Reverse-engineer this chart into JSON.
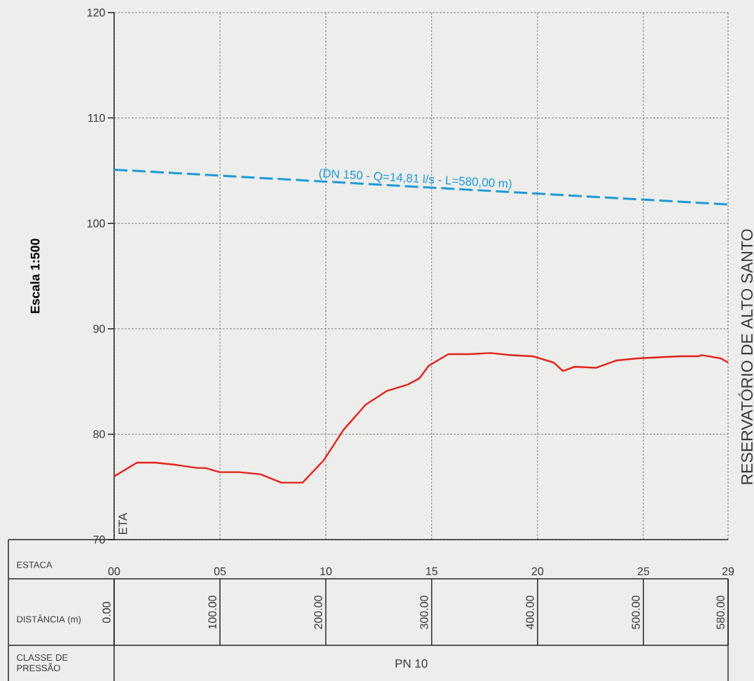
{
  "chart_data": {
    "type": "line",
    "ylabel": "Escala 1:500",
    "xlim": [
      0,
      29
    ],
    "ylim": [
      70,
      120
    ],
    "xticks": [
      {
        "value": 0,
        "label": "00"
      },
      {
        "value": 5,
        "label": "05"
      },
      10,
      15,
      20,
      25,
      29
    ],
    "yticks": [
      70,
      80,
      90,
      100,
      110,
      120
    ],
    "grid": true,
    "marker": "none",
    "series": [
      {
        "color": "#e2231a",
        "line_style": "solid",
        "x": [
          0,
          1.08,
          1.94,
          2.88,
          3.93,
          4.31,
          4.98,
          5.92,
          6.91,
          7.9,
          8.9,
          9.89,
          10.83,
          11.88,
          12.87,
          13.86,
          14.42,
          14.86,
          15.79,
          16.79,
          17.78,
          18.77,
          19.77,
          20.76,
          21.2,
          21.75,
          22.75,
          23.74,
          24.74,
          25.73,
          26.72,
          27.63,
          27.74,
          28.65,
          29
        ],
        "values": [
          76.0,
          77.3,
          77.3,
          77.1,
          76.8,
          76.8,
          76.4,
          76.4,
          76.2,
          75.4,
          75.4,
          77.5,
          80.4,
          82.8,
          84.1,
          84.7,
          85.3,
          86.5,
          87.6,
          87.6,
          87.7,
          87.5,
          87.4,
          86.8,
          86.0,
          86.4,
          86.3,
          87.0,
          87.2,
          87.3,
          87.4,
          87.4,
          87.5,
          87.2,
          86.8
        ]
      },
      {
        "name": "(DN 150 - Q=14,81 l/s - L=580,00 m)",
        "color": "#1e9ad6",
        "line_style": "dashed",
        "x": [
          0,
          29
        ],
        "values": [
          105.1,
          101.8
        ]
      }
    ],
    "annotations": [
      "ETA",
      "RESERVATÓRIO DE ALTO SANTO",
      "ESTACA",
      "DISTÂNCIA (m)",
      "CLASSE DE PRESSÃO",
      "PN 10",
      "0.00",
      "100.00",
      "200.00",
      "300.00",
      "400.00",
      "500.00",
      "580.00"
    ]
  }
}
